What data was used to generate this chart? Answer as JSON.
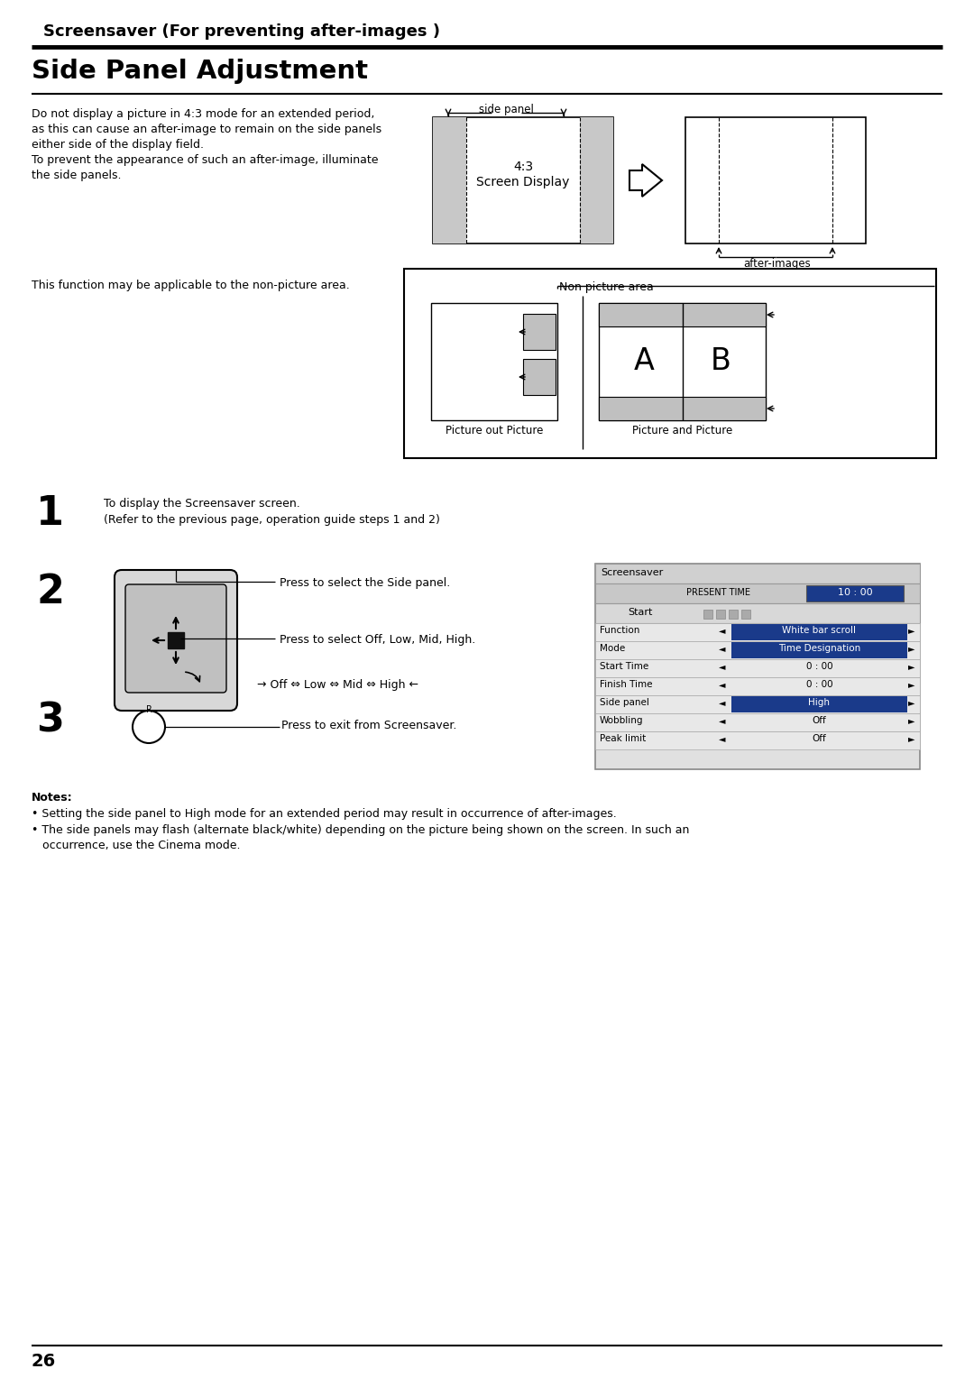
{
  "bg_color": "#ffffff",
  "header_title": "Screensaver (For preventing after-images )",
  "section_title": "Side Panel Adjustment",
  "body_text1_lines": [
    "Do not display a picture in 4:3 mode for an extended period,",
    "as this can cause an after-image to remain on the side panels",
    "either side of the display field.",
    "To prevent the appearance of such an after-image, illuminate",
    "the side panels."
  ],
  "body_text2": "This function may be applicable to the non-picture area.",
  "step1_text": "To display the Screensaver screen.\n(Refer to the previous page, operation guide steps 1 and 2)",
  "step2_text1": "Press to select the Side panel.",
  "step2_text2": "Press to select Off, Low, Mid, High.",
  "step2_text3": "→ Off ⇔ Low ⇔ Mid ⇔ High ←",
  "step3_text": "Press to exit from Screensaver.",
  "notes_title": "Notes:",
  "note1": "• Setting the side panel to High mode for an extended period may result in occurrence of after-images.",
  "note2": "• The side panels may flash (alternate black/white) depending on the picture being shown on the screen. In such an",
  "note2b": "   occurrence, use the Cinema mode.",
  "page_num": "26",
  "screensaver_rows": [
    [
      "Function",
      "White bar scroll",
      true
    ],
    [
      "Mode",
      "Time Designation",
      true
    ],
    [
      "Start Time",
      "0 : 00",
      false
    ],
    [
      "Finish Time",
      "0 : 00",
      false
    ],
    [
      "Side panel",
      "High",
      true
    ],
    [
      "Wobbling",
      "Off",
      false
    ],
    [
      "Peak limit",
      "Off",
      false
    ]
  ]
}
